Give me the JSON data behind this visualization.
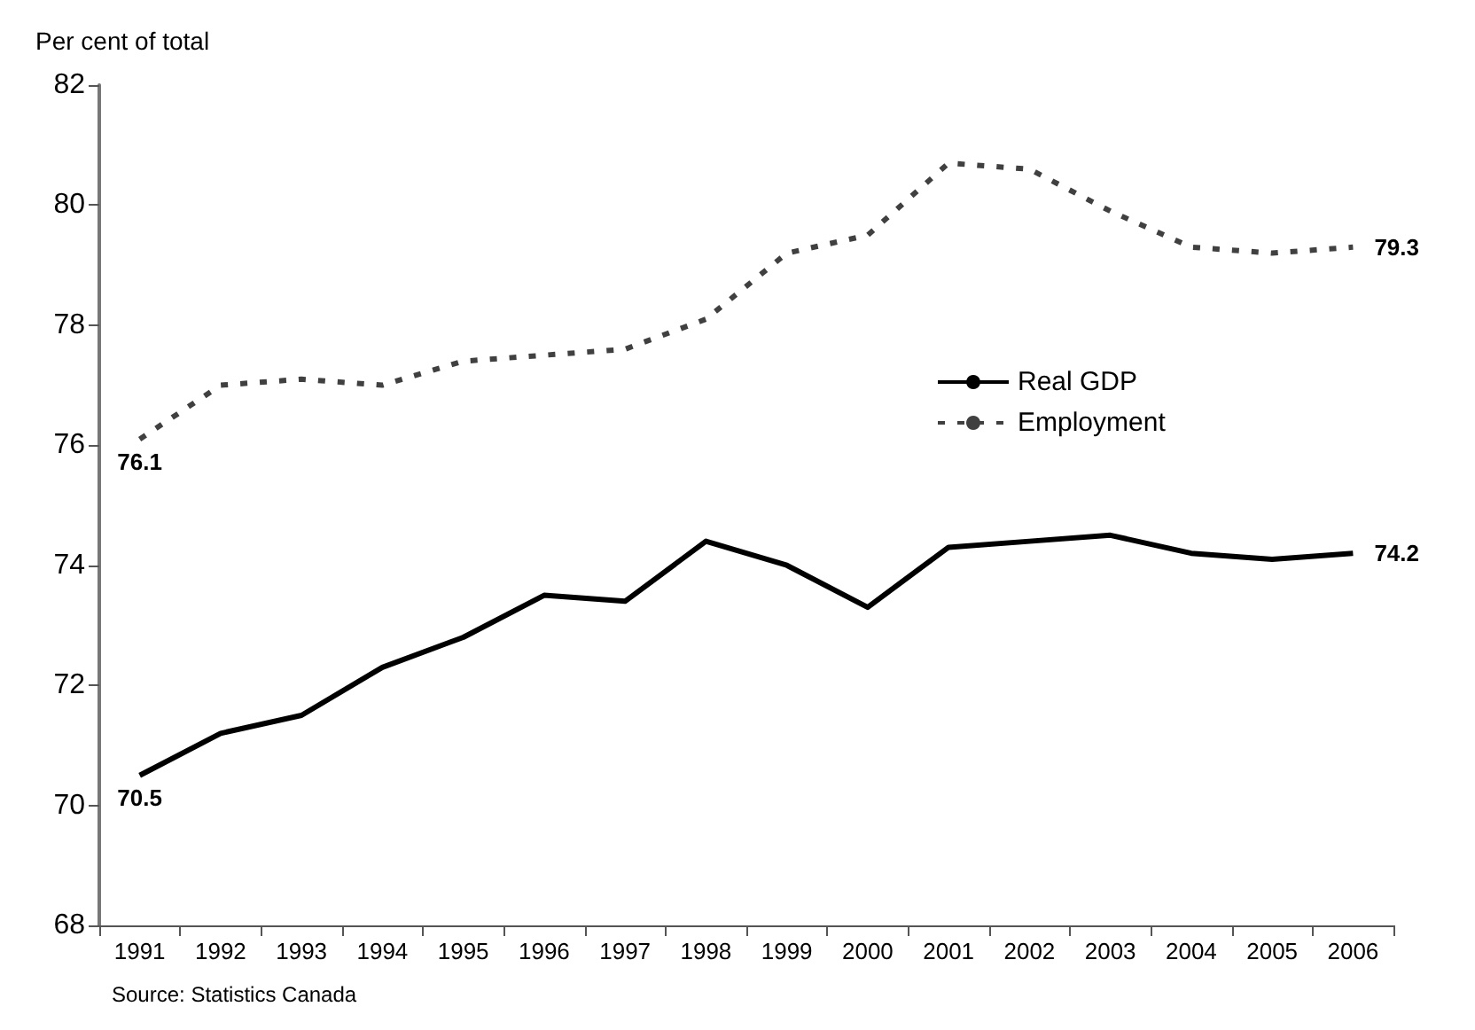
{
  "chart_data": {
    "type": "line",
    "ylabel": "Per cent of total",
    "categories": [
      "1991",
      "1992",
      "1993",
      "1994",
      "1995",
      "1996",
      "1997",
      "1998",
      "1999",
      "2000",
      "2001",
      "2002",
      "2003",
      "2004",
      "2005",
      "2006"
    ],
    "series": [
      {
        "name": "Real GDP",
        "color": "#000000",
        "line_style": "solid",
        "values": [
          70.5,
          71.2,
          71.5,
          72.3,
          72.8,
          73.5,
          73.4,
          74.4,
          74.0,
          73.3,
          74.3,
          74.4,
          74.5,
          74.2,
          74.1,
          74.2
        ],
        "value_labels": [
          "70.5",
          null,
          null,
          null,
          null,
          null,
          null,
          null,
          null,
          null,
          null,
          null,
          null,
          null,
          null,
          "74.2"
        ]
      },
      {
        "name": "Employment",
        "color": "#404040",
        "line_style": "dashed",
        "values": [
          76.1,
          77.0,
          77.1,
          77.0,
          77.4,
          77.5,
          77.6,
          78.1,
          79.2,
          79.5,
          80.7,
          80.6,
          79.9,
          79.3,
          79.2,
          79.3
        ],
        "value_labels": [
          "76.1",
          null,
          null,
          null,
          null,
          null,
          null,
          null,
          null,
          null,
          null,
          null,
          null,
          null,
          null,
          "79.3"
        ]
      }
    ],
    "ylim": [
      68,
      82
    ],
    "yticks": [
      68,
      70,
      72,
      74,
      76,
      78,
      80,
      82
    ],
    "grid": false,
    "legend": "right",
    "marker": "none",
    "annotations": [
      "Source: Statistics Canada"
    ]
  }
}
